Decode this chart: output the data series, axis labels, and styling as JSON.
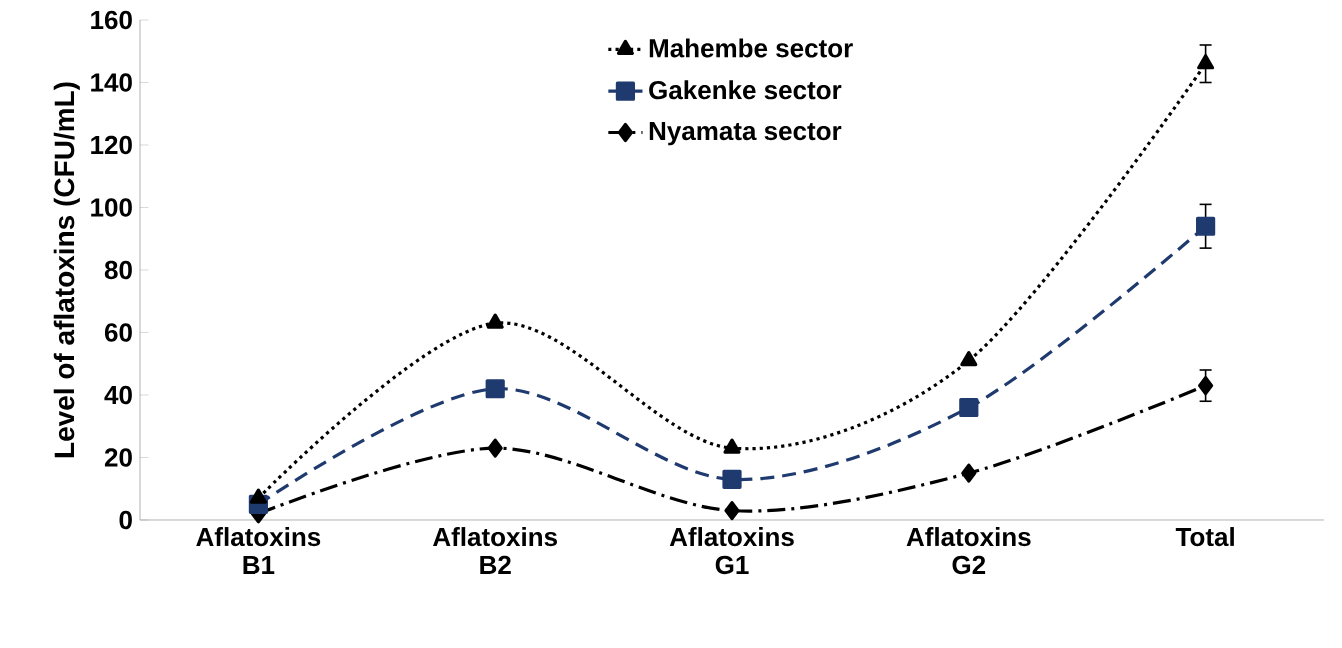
{
  "chart_data": {
    "type": "line",
    "ylabel": "Level of aflatoxins (CFU/mL)",
    "categories": [
      "Aflatoxins B1",
      "Aflatoxins B2",
      "Aflatoxins G1",
      "Aflatoxins G2",
      "Total"
    ],
    "series": [
      {
        "name": "Mahembe sector",
        "color": "#000000",
        "marker": "triangle",
        "line_style": "dotted",
        "values": [
          7,
          63,
          23,
          51,
          146
        ],
        "errors": [
          null,
          null,
          null,
          null,
          6
        ]
      },
      {
        "name": "Gakenke sector",
        "color": "#1f3a6e",
        "marker": "square",
        "line_style": "dashed",
        "values": [
          5,
          42,
          13,
          36,
          94
        ],
        "errors": [
          null,
          null,
          null,
          null,
          7
        ]
      },
      {
        "name": "Nyamata sector",
        "color": "#000000",
        "marker": "diamond",
        "line_style": "dashdot",
        "values": [
          2,
          23,
          3,
          15,
          43
        ],
        "errors": [
          null,
          null,
          null,
          null,
          5
        ]
      }
    ],
    "ylim": [
      0,
      160
    ],
    "yticks": [
      0,
      20,
      40,
      60,
      80,
      100,
      120,
      140,
      160
    ],
    "grid": false,
    "legend": "top"
  }
}
